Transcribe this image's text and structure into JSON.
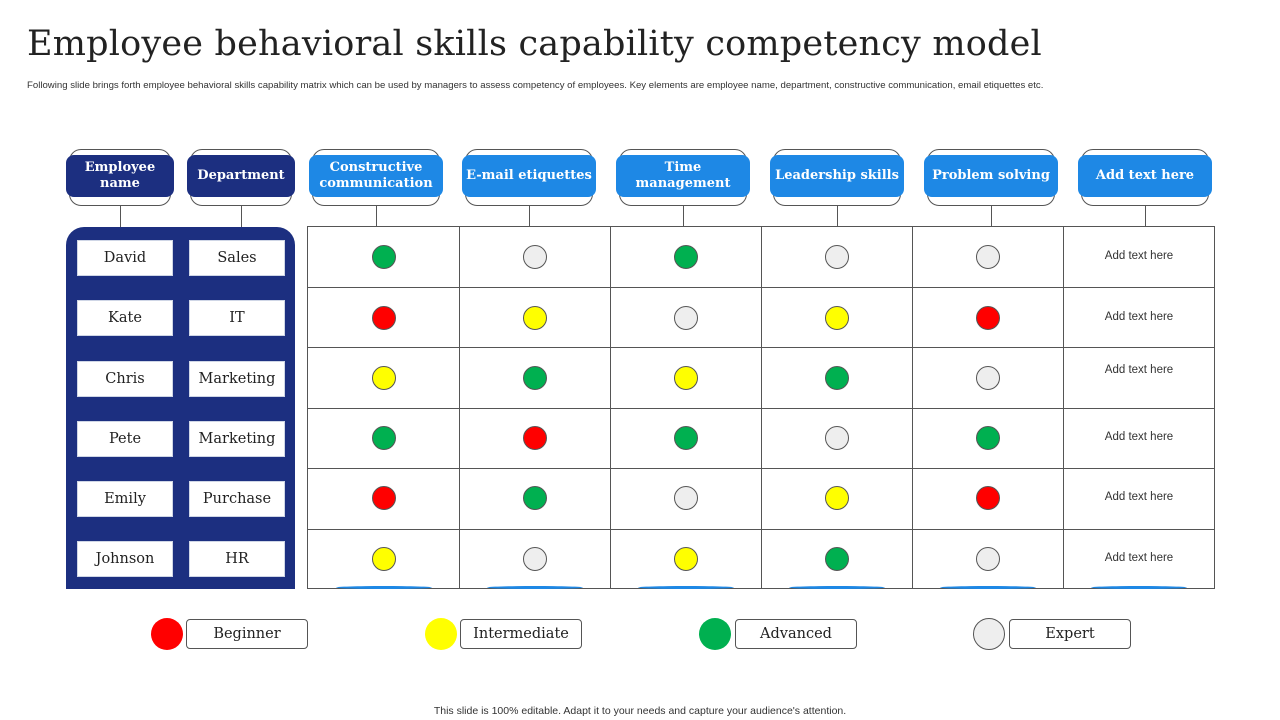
{
  "title": "Employee behavioral skills capability competency model",
  "subtitle": "Following slide brings forth employee behavioral skills capability matrix which can be used by managers to assess competency of employees. Key elements are employee name, department, constructive communication, email etiquettes etc.",
  "headers": {
    "employee": "Employee name",
    "department": "Department",
    "skills": [
      "Constructive communication",
      "E-mail etiquettes",
      "Time management",
      "Leadership skills",
      "Problem solving",
      "Add text here"
    ]
  },
  "employees": [
    {
      "name": "David",
      "department": "Sales",
      "ratings": [
        "advanced",
        "expert",
        "advanced",
        "expert",
        "expert"
      ],
      "note": "Add text here"
    },
    {
      "name": "Kate",
      "department": "IT",
      "ratings": [
        "beginner",
        "intermediate",
        "expert",
        "intermediate",
        "beginner"
      ],
      "note": "Add text here"
    },
    {
      "name": "Chris",
      "department": "Marketing",
      "ratings": [
        "intermediate",
        "advanced",
        "intermediate",
        "advanced",
        "expert"
      ],
      "note": "Add text here"
    },
    {
      "name": "Pete",
      "department": "Marketing",
      "ratings": [
        "advanced",
        "beginner",
        "advanced",
        "expert",
        "advanced"
      ],
      "note": "Add text here"
    },
    {
      "name": "Emily",
      "department": "Purchase",
      "ratings": [
        "beginner",
        "advanced",
        "expert",
        "intermediate",
        "beginner"
      ],
      "note": "Add text here"
    },
    {
      "name": "Johnson",
      "department": "HR",
      "ratings": [
        "intermediate",
        "expert",
        "intermediate",
        "advanced",
        "expert"
      ],
      "note": "Add text here"
    }
  ],
  "legend": [
    {
      "key": "beginner",
      "label": "Beginner",
      "color": "#ff0000"
    },
    {
      "key": "intermediate",
      "label": "Intermediate",
      "color": "#ffff00"
    },
    {
      "key": "advanced",
      "label": "Advanced",
      "color": "#00b050"
    },
    {
      "key": "expert",
      "label": "Expert",
      "color": "#eeeeee"
    }
  ],
  "colors": {
    "navy": "#1c2f80",
    "blue": "#1e88e5"
  },
  "footer": "This slide is 100% editable. Adapt it to your needs and capture your audience's attention."
}
